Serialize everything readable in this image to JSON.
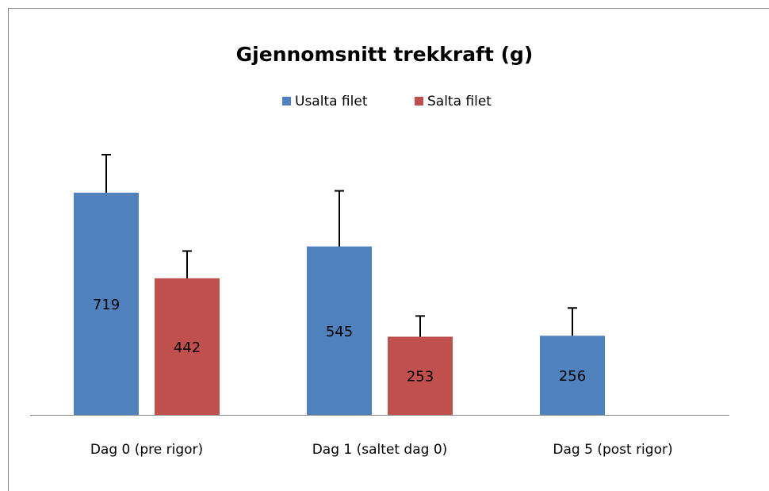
{
  "chart_data": {
    "type": "bar",
    "title": "Gjennomsnitt trekkraft (g)",
    "categories": [
      "Dag 0 (pre rigor)",
      "Dag 1 (saltet dag 0)",
      "Dag 5 (post rigor)"
    ],
    "series": [
      {
        "name": "Usalta filet",
        "color": "#4f81bd",
        "values": [
          719,
          545,
          256
        ],
        "errors": [
          123,
          180,
          90
        ]
      },
      {
        "name": "Salta filet",
        "color": "#c0504d",
        "values": [
          442,
          253,
          null
        ],
        "errors": [
          88,
          67,
          null
        ]
      }
    ],
    "legend": "top",
    "data_labels": true
  }
}
